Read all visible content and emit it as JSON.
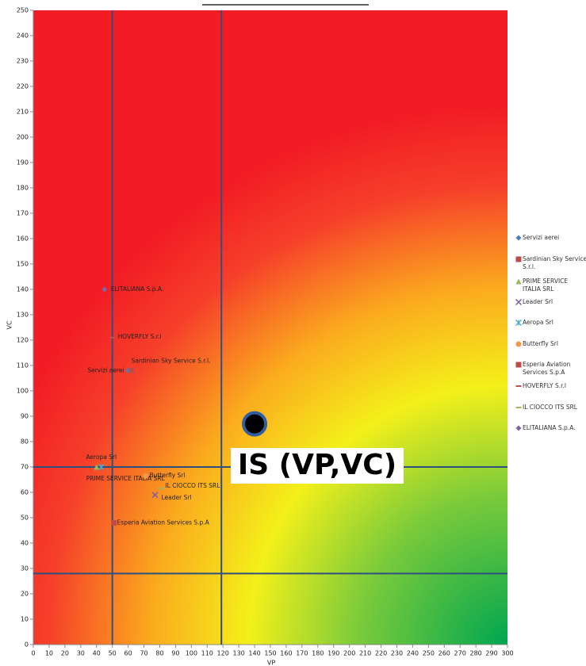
{
  "chart_data": {
    "type": "scatter",
    "xlabel": "VP",
    "ylabel": "VC",
    "xlim": [
      0,
      300
    ],
    "ylim": [
      0,
      250
    ],
    "xticks": [
      0,
      10,
      20,
      30,
      40,
      50,
      60,
      70,
      80,
      90,
      100,
      110,
      120,
      130,
      140,
      150,
      160,
      170,
      180,
      190,
      200,
      210,
      220,
      230,
      240,
      250,
      260,
      270,
      280,
      290,
      300
    ],
    "yticks": [
      0,
      10,
      20,
      30,
      40,
      50,
      60,
      70,
      80,
      90,
      100,
      110,
      120,
      130,
      140,
      150,
      160,
      170,
      180,
      190,
      200,
      210,
      220,
      230,
      240,
      250
    ],
    "reference_lines": {
      "x": [
        50,
        119
      ],
      "y": [
        70,
        28
      ]
    },
    "annotation": {
      "text": "IS (VP,VC)",
      "x": 140,
      "y": 87
    },
    "legend": "right",
    "series": [
      {
        "name": "Servizi aerei",
        "marker": "diamond",
        "color": "#4a7ebb",
        "x": [
          60
        ],
        "values": [
          108
        ]
      },
      {
        "name": "Sardinian Sky Service S.r.l.",
        "marker": "square",
        "color": "#be4b48",
        "x": [
          62
        ],
        "values": [
          108
        ]
      },
      {
        "name": "PRIME SERVICE ITALIA SRL",
        "marker": "triangle",
        "color": "#98b954",
        "x": [
          40
        ],
        "values": [
          70
        ]
      },
      {
        "name": "Leader Srl",
        "marker": "x",
        "color": "#7d60a0",
        "x": [
          77
        ],
        "values": [
          59
        ]
      },
      {
        "name": "Aeropa Srl",
        "marker": "star",
        "color": "#4bacc6",
        "x": [
          43
        ],
        "values": [
          70
        ]
      },
      {
        "name": "Butterfly Srl",
        "marker": "circle",
        "color": "#f79646",
        "x": [
          71
        ],
        "values": [
          66.5
        ]
      },
      {
        "name": "Esperia Aviation Services S.p.A",
        "marker": "square",
        "color": "#be4b48",
        "x": [
          51
        ],
        "values": [
          48
        ]
      },
      {
        "name": "HOVERFLY S.r.l",
        "marker": "dash",
        "color": "#c0504d",
        "x": [
          50
        ],
        "values": [
          121
        ]
      },
      {
        "name": "IL CIOCCO ITS SRL",
        "marker": "dash",
        "color": "#9bbb59",
        "x": [
          81
        ],
        "values": [
          61.5
        ]
      },
      {
        "name": "ELITALIANA S.p.A.",
        "marker": "diamond",
        "color": "#8064a2",
        "x": [
          45
        ],
        "values": [
          140
        ]
      }
    ]
  }
}
